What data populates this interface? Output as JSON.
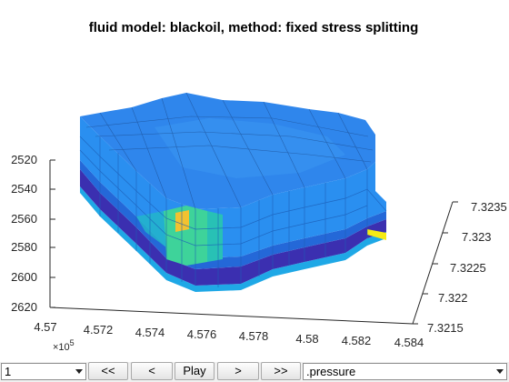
{
  "figure": {
    "title": "fluid model: blackoil, method: fixed stress splitting"
  },
  "axes": {
    "z_ticks": [
      "2520",
      "2540",
      "2560",
      "2580",
      "2600",
      "2620"
    ],
    "x_ticks": [
      "4.57",
      "4.572",
      "4.574",
      "4.576",
      "4.578",
      "4.58",
      "4.582",
      "4.584"
    ],
    "x_exponent_base": "×10",
    "x_exponent_power": "5",
    "y_ticks": [
      "7.3215",
      "7.322",
      "7.3225",
      "7.323",
      "7.3235"
    ]
  },
  "model_colors": {
    "top": "#2f86ec",
    "side": "#2a8ff0",
    "band_dark": "#3b2fb0",
    "band_mid": "#2468d8",
    "base_cyan": "#1fa8e6",
    "hot_yellow": "#f2c230",
    "hot_green": "#3ed39a",
    "hot_teal": "#28c1b5",
    "corner_yellow": "#f5ea14"
  },
  "controls": {
    "step_select_value": "1",
    "btn_first": "<<",
    "btn_prev": "<",
    "btn_play": "Play",
    "btn_next": ">",
    "btn_last": ">>",
    "field_select_value": ".pressure"
  }
}
